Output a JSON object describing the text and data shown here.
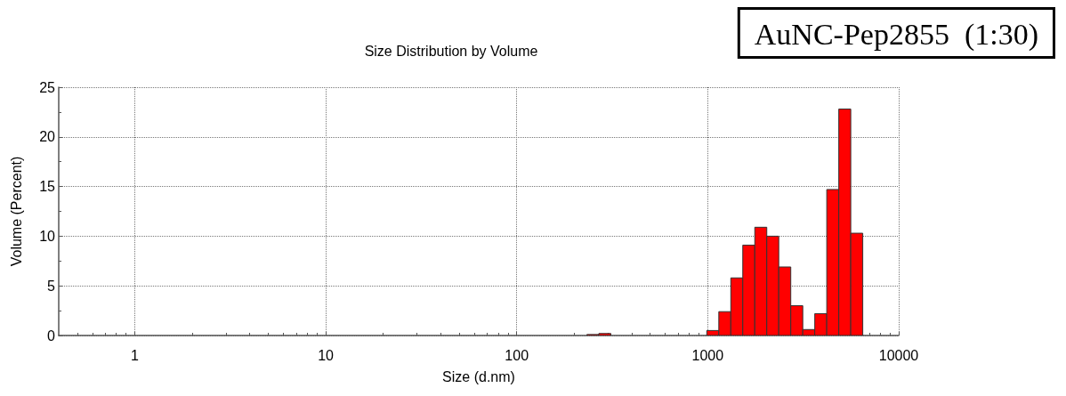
{
  "chart_data": {
    "type": "histogram",
    "title": "Size Distribution by Volume",
    "xlabel": "Size (d.nm)",
    "ylabel": "Volume (Percent)",
    "annotations": [
      "AuNC-Pep2855  (1:30)"
    ],
    "bins": [
      233,
      269,
      311,
      359,
      415,
      480,
      554,
      641,
      740,
      856,
      989,
      1143,
      1321,
      1526,
      1764,
      2038,
      2355,
      2722,
      3146,
      3635,
      4200,
      4855,
      5610,
      6483
    ],
    "values": [
      0.1,
      0.2,
      0,
      0,
      0,
      0,
      0,
      0,
      0,
      0,
      0.5,
      2.4,
      5.8,
      9.1,
      10.9,
      10,
      6.9,
      3,
      0.6,
      2.2,
      14.7,
      22.8,
      10.3
    ],
    "color": "#ff0000",
    "log": "x",
    "xlim": [
      0.4,
      10000
    ],
    "xticks": [
      1,
      10,
      100,
      1000,
      10000
    ],
    "ylim": [
      0,
      25
    ],
    "yticks": [
      0,
      5,
      10,
      15,
      20,
      25
    ],
    "grid": true
  }
}
